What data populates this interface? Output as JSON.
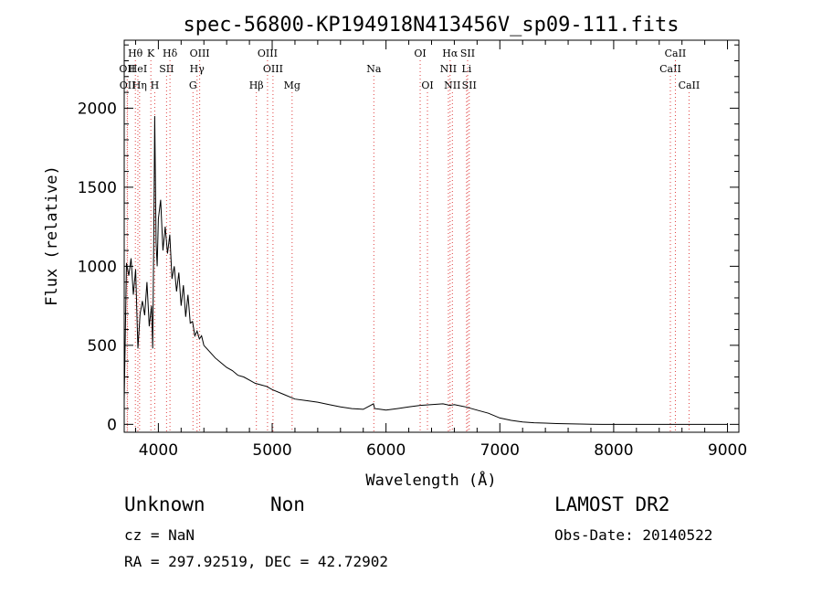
{
  "chart_data": {
    "type": "line",
    "title": "spec-56800-KP194918N413456V_sp09-111.fits",
    "xlabel": "Wavelength (Å)",
    "ylabel": "Flux (relative)",
    "xlim": [
      3700,
      9100
    ],
    "ylim": [
      -50,
      2430
    ],
    "xticks": [
      4000,
      5000,
      6000,
      7000,
      8000,
      9000
    ],
    "yticks": [
      0,
      500,
      1000,
      1500,
      2000
    ],
    "series": [
      {
        "color": "#000000",
        "x": [
          3700,
          3720,
          3740,
          3760,
          3780,
          3800,
          3820,
          3840,
          3860,
          3880,
          3900,
          3920,
          3940,
          3950,
          3960,
          3968,
          3980,
          3990,
          4000,
          4020,
          4040,
          4060,
          4080,
          4100,
          4120,
          4140,
          4160,
          4180,
          4200,
          4220,
          4240,
          4260,
          4280,
          4300,
          4320,
          4340,
          4360,
          4380,
          4400,
          4450,
          4500,
          4550,
          4600,
          4650,
          4700,
          4750,
          4800,
          4850,
          4900,
          4950,
          5000,
          5100,
          5200,
          5300,
          5400,
          5500,
          5600,
          5700,
          5800,
          5890,
          5900,
          5950,
          6000,
          6100,
          6200,
          6300,
          6400,
          6500,
          6563,
          6600,
          6700,
          6800,
          6900,
          7000,
          7100,
          7200,
          7300,
          7400,
          7500,
          7600,
          7700,
          7800,
          7900,
          8000,
          8100,
          8200,
          8300,
          8400,
          8500,
          8600,
          8700,
          8800,
          8900,
          9000
        ],
        "y": [
          150,
          1020,
          940,
          1050,
          820,
          980,
          480,
          700,
          780,
          690,
          900,
          620,
          750,
          480,
          1200,
          1950,
          1150,
          1000,
          1300,
          1420,
          1100,
          1250,
          1080,
          1200,
          920,
          1000,
          840,
          960,
          750,
          880,
          680,
          820,
          640,
          650,
          560,
          590,
          540,
          560,
          500,
          460,
          420,
          390,
          360,
          340,
          310,
          300,
          280,
          260,
          250,
          240,
          220,
          190,
          160,
          150,
          140,
          125,
          110,
          100,
          95,
          130,
          100,
          95,
          90,
          100,
          110,
          120,
          125,
          130,
          120,
          125,
          110,
          90,
          70,
          40,
          25,
          15,
          10,
          8,
          5,
          3,
          2,
          1,
          0,
          0,
          0,
          0,
          0,
          0,
          0,
          0,
          0,
          0,
          0,
          0
        ]
      }
    ],
    "lines": [
      {
        "wl": 3726,
        "label": "OII",
        "row": 1
      },
      {
        "wl": 3729,
        "label": "OII",
        "row": 2
      },
      {
        "wl": 3798,
        "label": "Hθ",
        "row": 0
      },
      {
        "wl": 3820,
        "label": "HeI",
        "row": 1
      },
      {
        "wl": 3835,
        "label": "Hη",
        "row": 2
      },
      {
        "wl": 3934,
        "label": "K",
        "row": 0
      },
      {
        "wl": 3968,
        "label": "H",
        "row": 2
      },
      {
        "wl": 4102,
        "label": "Hδ",
        "row": 0
      },
      {
        "wl": 4072,
        "label": "SII",
        "row": 1
      },
      {
        "wl": 4304,
        "label": "G",
        "row": 2
      },
      {
        "wl": 4340,
        "label": "Hγ",
        "row": 1
      },
      {
        "wl": 4363,
        "label": "OIII",
        "row": 0
      },
      {
        "wl": 4861,
        "label": "Hβ",
        "row": 2
      },
      {
        "wl": 4959,
        "label": "OIII",
        "row": 0
      },
      {
        "wl": 5007,
        "label": "OIII",
        "row": 1
      },
      {
        "wl": 5175,
        "label": "Mg",
        "row": 2
      },
      {
        "wl": 5893,
        "label": "Na",
        "row": 1
      },
      {
        "wl": 6300,
        "label": "OI",
        "row": 0
      },
      {
        "wl": 6364,
        "label": "OI",
        "row": 2
      },
      {
        "wl": 6548,
        "label": "NII",
        "row": 1
      },
      {
        "wl": 6563,
        "label": "Hα",
        "row": 0
      },
      {
        "wl": 6583,
        "label": "NII",
        "row": 2
      },
      {
        "wl": 6708,
        "label": "Li",
        "row": 1
      },
      {
        "wl": 6717,
        "label": "SII",
        "row": 0
      },
      {
        "wl": 6731,
        "label": "SII",
        "row": 2
      },
      {
        "wl": 8498,
        "label": "CaII",
        "row": 1
      },
      {
        "wl": 8542,
        "label": "CaII",
        "row": 0
      },
      {
        "wl": 8662,
        "label": "CaII",
        "row": 2
      }
    ]
  },
  "info": {
    "class": "Unknown",
    "subclass": "Non",
    "survey": "LAMOST DR2",
    "cz": "cz = NaN",
    "obs_date": "Obs-Date: 20140522",
    "coords": "RA = 297.92519, DEC =  42.72902"
  }
}
